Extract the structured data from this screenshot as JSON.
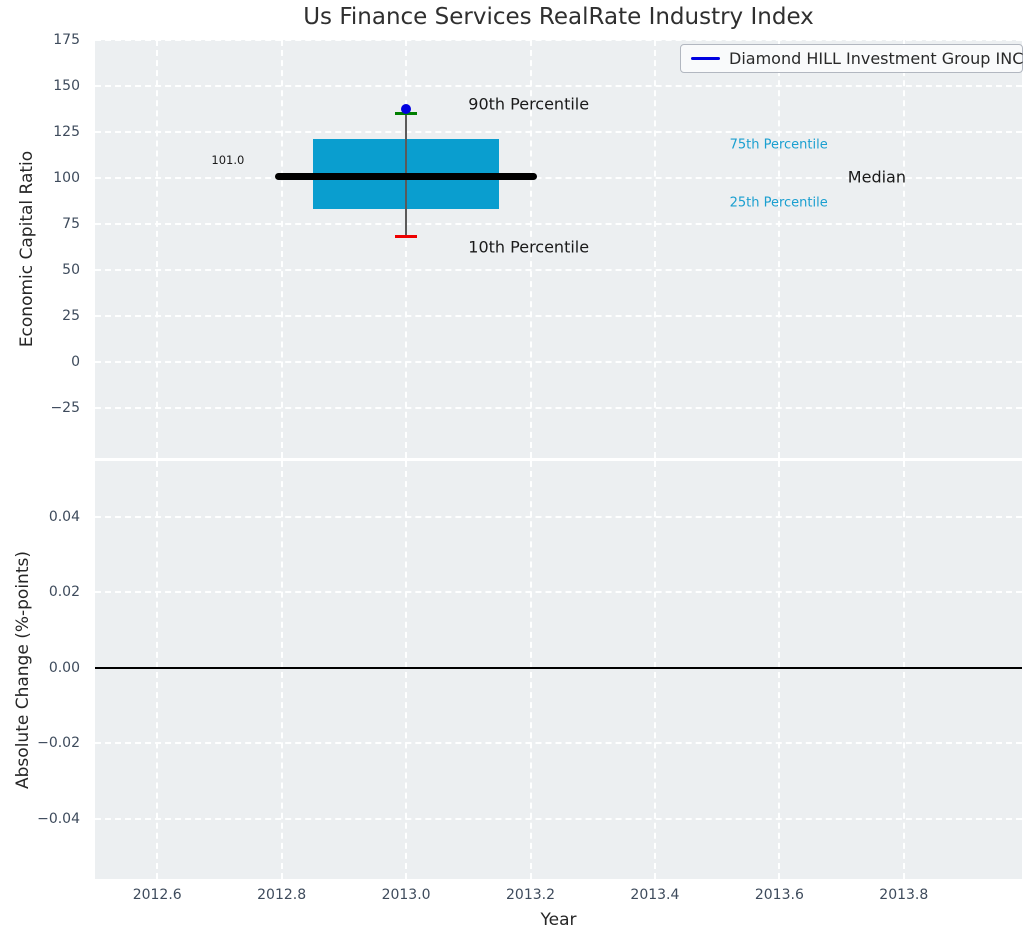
{
  "title": "Us Finance Services RealRate Industry Index",
  "legend": {
    "label": "Diamond HILL Investment Group INC",
    "line_color": "#0000e0"
  },
  "colors": {
    "plot_bg": "#eceff1",
    "grid": "#ffffff",
    "tick_label": "#3e4b5c",
    "box_fill": "#0a9ecf",
    "median": "#000000",
    "whisker": "#5a5a5a",
    "p90_cap": "#007f00",
    "p10_cap": "#ee0000",
    "company_point": "#0000e0",
    "zero_line": "#000000",
    "annotation_dark": "#1a1a1a",
    "annotation_cyan": "#1a9fd0"
  },
  "chart_data": [
    {
      "type": "boxplot",
      "title": "Us Finance Services RealRate Industry Index",
      "ylabel": "Economic Capital Ratio",
      "legend_position": "upper right",
      "grid": "white dashed",
      "xlim": [
        2012.5,
        2013.99
      ],
      "ylim": [
        -52.3,
        175
      ],
      "show_xtick_labels": false,
      "xticks": [
        {
          "v": 2012.6,
          "label": "2012.6"
        },
        {
          "v": 2012.8,
          "label": "2012.8"
        },
        {
          "v": 2013.0,
          "label": "2013.0"
        },
        {
          "v": 2013.2,
          "label": "2013.2"
        },
        {
          "v": 2013.4,
          "label": "2013.4"
        },
        {
          "v": 2013.6,
          "label": "2013.6"
        },
        {
          "v": 2013.8,
          "label": "2013.8"
        }
      ],
      "yticks": [
        {
          "v": 175,
          "label": "175"
        },
        {
          "v": 150,
          "label": "150"
        },
        {
          "v": 125,
          "label": "125"
        },
        {
          "v": 100,
          "label": "100"
        },
        {
          "v": 75,
          "label": "75"
        },
        {
          "v": 50,
          "label": "50"
        },
        {
          "v": 25,
          "label": "25"
        },
        {
          "v": 0,
          "label": "0"
        },
        {
          "v": -25,
          "label": "−25"
        }
      ],
      "box": {
        "year": 2013.0,
        "x_left": 2012.85,
        "x_right": 2013.15,
        "q1": 83,
        "q3": 121,
        "median": 101.0,
        "median_x_left": 2012.79,
        "median_x_right": 2013.21,
        "whisker_x": 2013.0,
        "p10": 68,
        "p90": 135,
        "cap_halfwidth": 0.017
      },
      "company_point": {
        "name": "Diamond HILL Investment Group INC",
        "x": 2013.0,
        "y": 137.5
      },
      "annotations": [
        {
          "text": "90th Percentile",
          "x": 2013.1,
          "y": 140.0,
          "ha": "left",
          "style": "dark-large"
        },
        {
          "text": "10th Percentile",
          "x": 2013.1,
          "y": 62.5,
          "ha": "left",
          "style": "dark-large"
        },
        {
          "text": "Median",
          "x": 2013.71,
          "y": 100.5,
          "ha": "left",
          "style": "dark-large"
        },
        {
          "text": "75th Percentile",
          "x": 2013.52,
          "y": 118.0,
          "ha": "left",
          "style": "cyan-small"
        },
        {
          "text": "25th Percentile",
          "x": 2013.52,
          "y": 86.5,
          "ha": "left",
          "style": "cyan-small"
        },
        {
          "text": "101.0",
          "x": 2012.74,
          "y": 110.0,
          "ha": "right",
          "style": "value-tiny"
        }
      ]
    },
    {
      "type": "line",
      "ylabel": "Absolute Change (%-points)",
      "xlabel": "Year",
      "grid": "white dashed",
      "xlim": [
        2012.5,
        2013.99
      ],
      "ylim": [
        -0.0559,
        0.0548
      ],
      "show_xtick_labels": true,
      "zero_line": 0.0,
      "series": [],
      "xticks": [
        {
          "v": 2012.6,
          "label": "2012.6"
        },
        {
          "v": 2012.8,
          "label": "2012.8"
        },
        {
          "v": 2013.0,
          "label": "2013.0"
        },
        {
          "v": 2013.2,
          "label": "2013.2"
        },
        {
          "v": 2013.4,
          "label": "2013.4"
        },
        {
          "v": 2013.6,
          "label": "2013.6"
        },
        {
          "v": 2013.8,
          "label": "2013.8"
        }
      ],
      "yticks": [
        {
          "v": 0.04,
          "label": "0.04"
        },
        {
          "v": 0.02,
          "label": "0.02"
        },
        {
          "v": 0.0,
          "label": "0.00"
        },
        {
          "v": -0.02,
          "label": "−0.02"
        },
        {
          "v": -0.04,
          "label": "−0.04"
        }
      ]
    }
  ]
}
